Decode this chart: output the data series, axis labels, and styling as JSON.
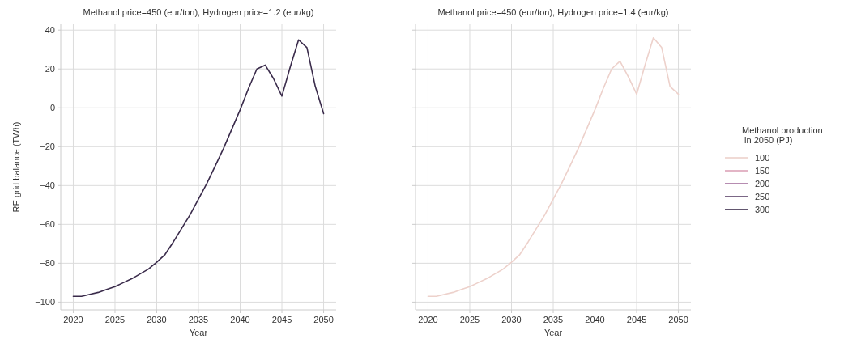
{
  "chart_data": [
    {
      "type": "line",
      "title": "Methanol price=450 (eur/ton), Hydrogen price=1.2 (eur/kg)",
      "xlabel": "Year",
      "ylabel": "RE grid balance (TWh)",
      "x": [
        2020,
        2021,
        2022,
        2023,
        2024,
        2025,
        2026,
        2027,
        2028,
        2029,
        2030,
        2031,
        2032,
        2033,
        2034,
        2035,
        2036,
        2037,
        2038,
        2039,
        2040,
        2041,
        2042,
        2043,
        2044,
        2045,
        2046,
        2047,
        2048,
        2049,
        2050
      ],
      "xlim": [
        2018.5,
        2051.5
      ],
      "xticks": [
        2020,
        2025,
        2030,
        2035,
        2040,
        2045,
        2050
      ],
      "ylim": [
        -104,
        43
      ],
      "yticks": [
        -100,
        -80,
        -60,
        -40,
        -20,
        0,
        20,
        40
      ],
      "grid": true,
      "legend": "right",
      "series": [
        {
          "name": "300",
          "color": "#3a2b4b",
          "values": [
            -97,
            -97,
            -96,
            -95,
            -93.5,
            -92,
            -90,
            -88,
            -85.5,
            -83,
            -79.5,
            -75.5,
            -69,
            -62,
            -55,
            -47,
            -39,
            -30,
            -21,
            -11,
            -1,
            10,
            20,
            22,
            15,
            6,
            21,
            35,
            31,
            11,
            -3
          ]
        }
      ]
    },
    {
      "type": "line",
      "title": "Methanol price=450 (eur/ton), Hydrogen price=1.4 (eur/kg)",
      "xlabel": "Year",
      "x": [
        2020,
        2021,
        2022,
        2023,
        2024,
        2025,
        2026,
        2027,
        2028,
        2029,
        2030,
        2031,
        2032,
        2033,
        2034,
        2035,
        2036,
        2037,
        2038,
        2039,
        2040,
        2041,
        2042,
        2043,
        2044,
        2045,
        2046,
        2047,
        2048,
        2049,
        2050
      ],
      "xlim": [
        2018.5,
        2051.5
      ],
      "xticks": [
        2020,
        2025,
        2030,
        2035,
        2040,
        2045,
        2050
      ],
      "ylim": [
        -104,
        43
      ],
      "yticks": [
        -100,
        -80,
        -60,
        -40,
        -20,
        0,
        20,
        40
      ],
      "tick_labels": "x",
      "grid": true,
      "legend": "right",
      "legend_title": "Methanol production\n in 2050 (PJ)",
      "series": [
        {
          "name": "100",
          "color": "#edd1cb",
          "values": [
            -97,
            -97,
            -96,
            -95,
            -93.5,
            -92,
            -90,
            -88,
            -85.5,
            -83,
            -79.5,
            -75.5,
            -69,
            -62,
            -55,
            -47,
            -39,
            -30,
            -21,
            -11,
            -1,
            10,
            20,
            24,
            16,
            7,
            22,
            36,
            31,
            11,
            7
          ]
        },
        {
          "name": "150",
          "color": "#dca3b8",
          "values": [
            null,
            null,
            null,
            null,
            null,
            null,
            null,
            null,
            null,
            null,
            null,
            null,
            null,
            null,
            null,
            null,
            null,
            null,
            null,
            null,
            null,
            null,
            null,
            null,
            null,
            null,
            null,
            null,
            null,
            null,
            null
          ]
        },
        {
          "name": "200",
          "color": "#a4709e",
          "values": [
            null,
            null,
            null,
            null,
            null,
            null,
            null,
            null,
            null,
            null,
            null,
            null,
            null,
            null,
            null,
            null,
            null,
            null,
            null,
            null,
            null,
            null,
            null,
            null,
            null,
            null,
            null,
            null,
            null,
            null,
            null
          ]
        },
        {
          "name": "250",
          "color": "#5b4268",
          "values": [
            null,
            null,
            null,
            null,
            null,
            null,
            null,
            null,
            null,
            null,
            null,
            null,
            null,
            null,
            null,
            null,
            null,
            null,
            null,
            null,
            null,
            null,
            null,
            null,
            null,
            null,
            null,
            null,
            null,
            null,
            null
          ]
        }
      ]
    }
  ]
}
